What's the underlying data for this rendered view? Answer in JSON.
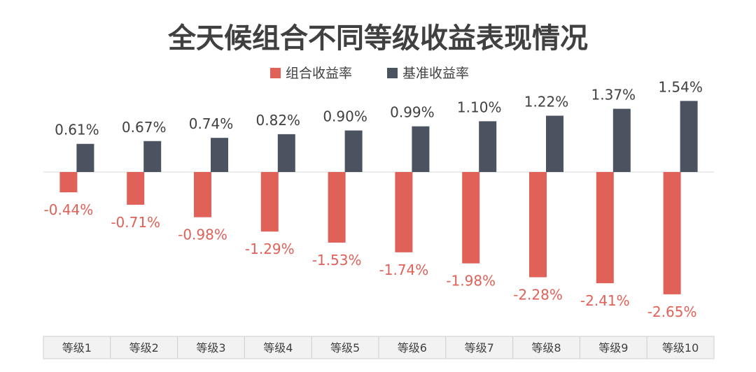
{
  "chart_data": {
    "type": "bar",
    "title": "全天候组合不同等级收益表现情况",
    "categories": [
      "等级1",
      "等级2",
      "等级3",
      "等级4",
      "等级5",
      "等级6",
      "等级7",
      "等级8",
      "等级9",
      "等级10"
    ],
    "series": [
      {
        "name": "组合收益率",
        "color": "#e06158",
        "values": [
          -0.44,
          -0.71,
          -0.98,
          -1.29,
          -1.53,
          -1.74,
          -1.98,
          -2.28,
          -2.41,
          -2.65
        ],
        "labels": [
          "-0.44%",
          "-0.71%",
          "-0.98%",
          "-1.29%",
          "-1.53%",
          "-1.74%",
          "-1.98%",
          "-2.28%",
          "-2.41%",
          "-2.65%"
        ]
      },
      {
        "name": "基准收益率",
        "color": "#4b5260",
        "values": [
          0.61,
          0.67,
          0.74,
          0.82,
          0.9,
          0.99,
          1.1,
          1.22,
          1.37,
          1.54
        ],
        "labels": [
          "0.61%",
          "0.67%",
          "0.74%",
          "0.82%",
          "0.90%",
          "0.99%",
          "1.10%",
          "1.22%",
          "1.37%",
          "1.54%"
        ]
      }
    ],
    "ylim": [
      -3.0,
      1.8
    ],
    "legend_position": "top-center",
    "grid": false
  }
}
